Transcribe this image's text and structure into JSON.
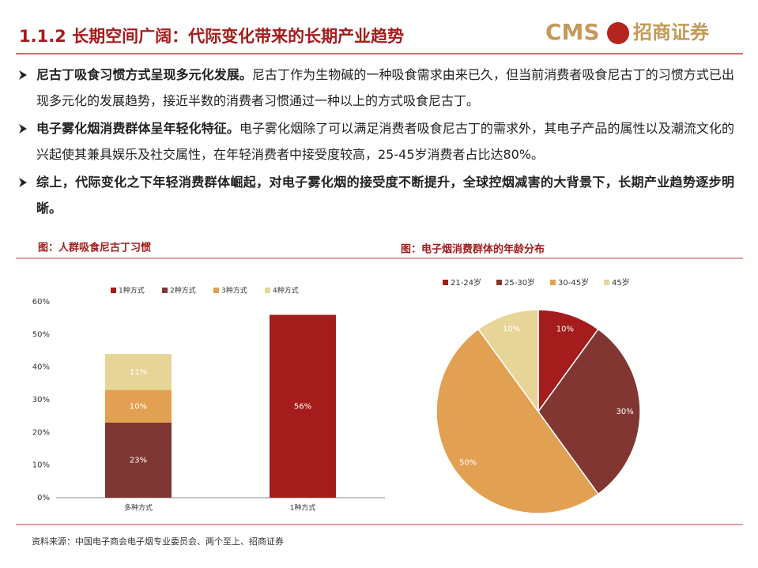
{
  "header": {
    "title": "1.1.2 长期空间广阔：代际变化带来的长期产业趋势",
    "logo_text": "CMS",
    "logo_cn": "招商证券"
  },
  "bullets": [
    {
      "bold": "尼古丁吸食习惯方式呈现多元化发展。",
      "text": "尼古丁作为生物碱的一种吸食需求由来已久，但当前消费者吸食尼古丁的习惯方式已出现多元化的发展趋势，接近半数的消费者习惯通过一种以上的方式吸食尼古丁。"
    },
    {
      "bold": "电子雾化烟消费群体呈年轻化特征。",
      "text": "电子雾化烟除了可以满足消费者吸食尼古丁的需求外，其电子产品的属性以及潮流文化的兴起使其兼具娱乐及社交属性，在年轻消费者中接受度较高，25-45岁消费者占比达80%。"
    },
    {
      "bold": "综上，代际变化之下年轻消费群体崛起，对电子雾化烟的接受度不断提升，全球控烟减害的大背景下，长期产业趋势逐步明晰。"
    }
  ],
  "chart_data": [
    {
      "type": "bar",
      "stacked": true,
      "title": "图：人群吸食尼古丁习惯",
      "categories": [
        "多种方式",
        "1种方式"
      ],
      "series": [
        {
          "name": "1种方式",
          "color": "#a51c1c",
          "values": [
            null,
            56
          ],
          "value_labels": [
            null,
            "56%"
          ]
        },
        {
          "name": "2种方式",
          "color": "#7e3633",
          "values": [
            23,
            null
          ],
          "value_labels": [
            "23%",
            null
          ]
        },
        {
          "name": "3种方式",
          "color": "#e2a052",
          "values": [
            10,
            null
          ],
          "value_labels": [
            "10%",
            null
          ]
        },
        {
          "name": "4种方式",
          "color": "#e6d597",
          "values": [
            11,
            null
          ],
          "value_labels": [
            "11%",
            null
          ]
        }
      ],
      "ylim": [
        0,
        60
      ],
      "yticks": [
        {
          "value": 0,
          "label": "0%"
        },
        {
          "value": 10,
          "label": "10%"
        },
        {
          "value": 20,
          "label": "20%"
        },
        {
          "value": 30,
          "label": "30%"
        },
        {
          "value": 40,
          "label": "40%"
        },
        {
          "value": 50,
          "label": "50%"
        },
        {
          "value": 60,
          "label": "60%"
        }
      ],
      "grid": false,
      "legend": "top"
    },
    {
      "type": "pie",
      "title": "图：电子烟消费群体的年龄分布",
      "categories": [
        "21-24岁",
        "25-30岁",
        "30-45岁",
        "45岁"
      ],
      "values": [
        10,
        30,
        50,
        10
      ],
      "value_labels": [
        "10%",
        "30%",
        "50%",
        "10%"
      ],
      "colors": [
        "#a51c1c",
        "#823632",
        "#e2a052",
        "#e6d597"
      ],
      "legend": "top"
    }
  ],
  "source": "资料来源：中国电子商会电子烟专业委员会、两个至上、招商证券"
}
